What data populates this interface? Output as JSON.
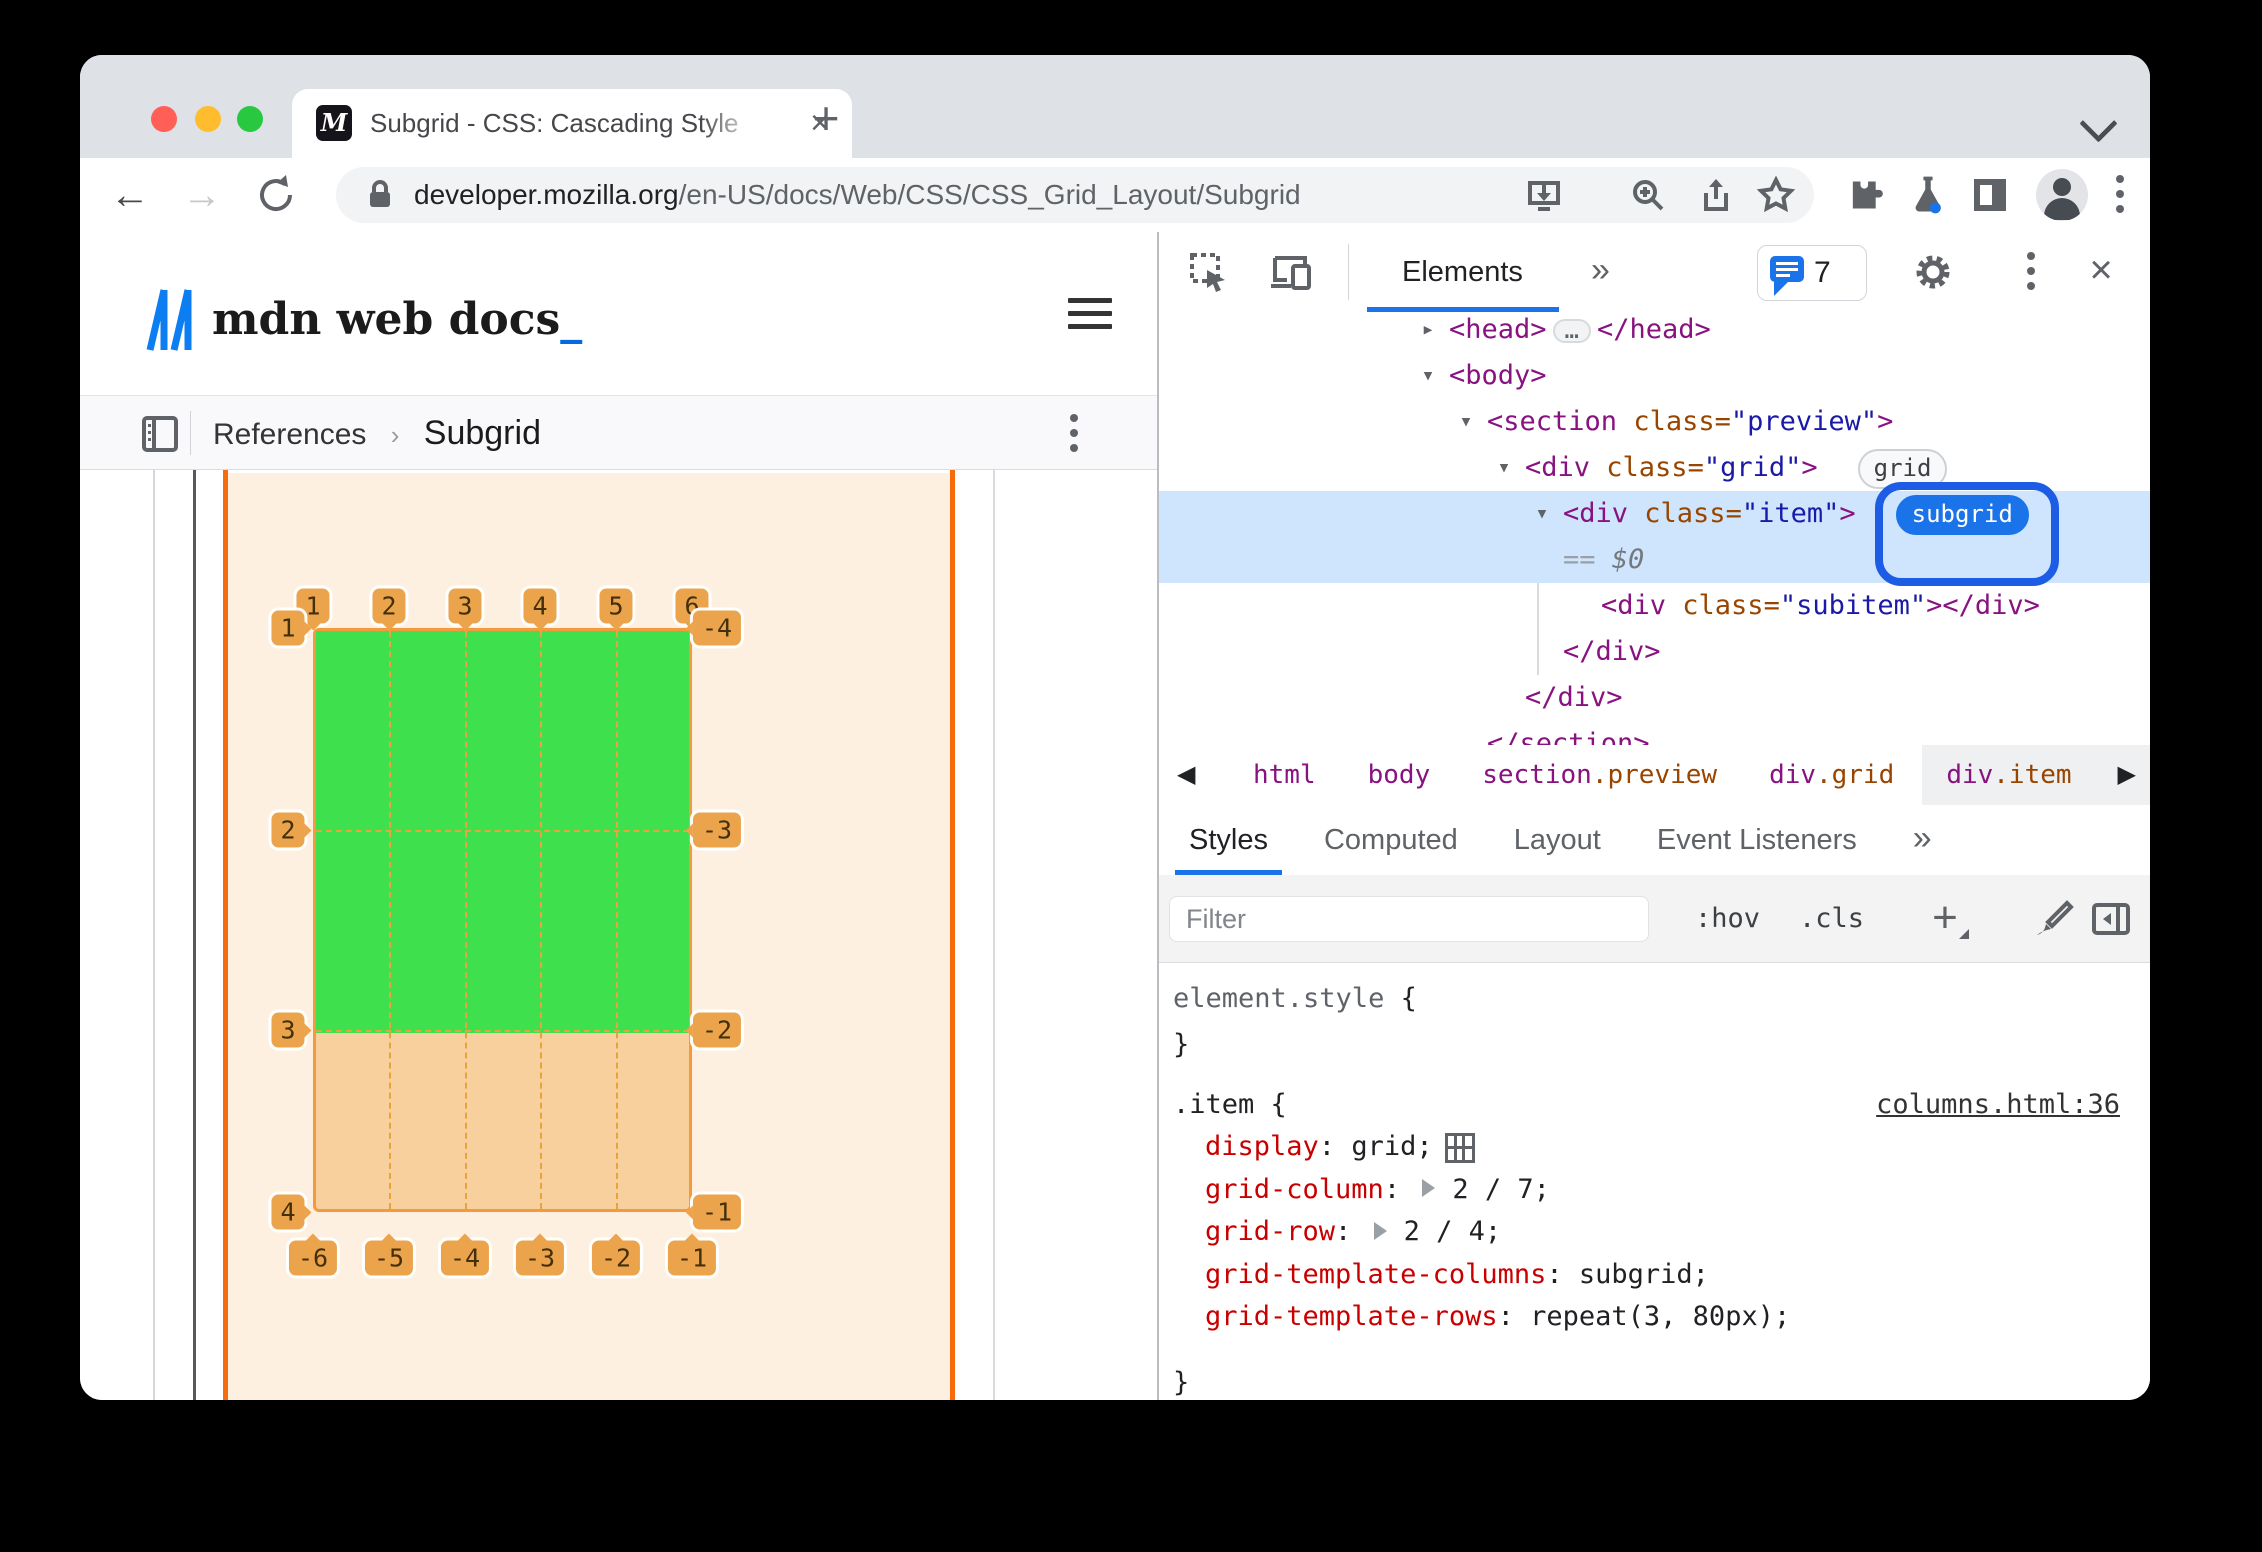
{
  "tab": {
    "favicon_letter": "M",
    "title": "Subgrid - CSS: Cascading Style",
    "close_glyph": "×",
    "new_tab_glyph": "+"
  },
  "toolbar": {
    "back_glyph": "←",
    "forward_glyph": "→",
    "url_domain": "developer.mozilla.org",
    "url_path": "/en-US/docs/Web/CSS/CSS_Grid_Layout/Subgrid"
  },
  "page": {
    "logo_text": "mdn web docs",
    "logo_underscore": "_",
    "breadcrumb": {
      "section": "References",
      "separator": "›",
      "current": "Subgrid"
    },
    "overlay": {
      "top_labels": [
        "1",
        "2",
        "3",
        "4",
        "5",
        "6"
      ],
      "bottom_labels": [
        "-6",
        "-5",
        "-4",
        "-3",
        "-2",
        "-1"
      ],
      "left_labels": [
        "1",
        "2",
        "3",
        "4"
      ],
      "right_labels": [
        "-4",
        "-3",
        "-2",
        "-1"
      ],
      "colors": {
        "page_tint": "#fdf0e1",
        "subgrid_green": "#3ee04e",
        "row_tint": "#f8d09e",
        "grid_line": "#f66b0c",
        "dashed_line": "#e8a33d",
        "badge": "#eca44c"
      }
    }
  },
  "devtools": {
    "header": {
      "panel_tab": "Elements",
      "more_glyph": "»",
      "issues_count": "7",
      "close_glyph": "×"
    },
    "tree": {
      "rows": [
        {
          "depth": 2,
          "arrow": "▸",
          "parts": [
            {
              "t": "<head>",
              "c": "tag"
            },
            {
              "pill": "…"
            },
            {
              "t": "</head>",
              "c": "tag"
            }
          ]
        },
        {
          "depth": 2,
          "arrow": "▾",
          "parts": [
            {
              "t": "<body>",
              "c": "tag"
            }
          ]
        },
        {
          "depth": 3,
          "arrow": "▾",
          "parts": [
            {
              "t": "<section ",
              "c": "tag"
            },
            {
              "t": "class",
              "c": "attr"
            },
            {
              "t": "=",
              "c": "attr"
            },
            {
              "t": "\"preview\"",
              "c": "val"
            },
            {
              "t": ">",
              "c": "tag"
            }
          ]
        },
        {
          "depth": 4,
          "arrow": "▾",
          "parts": [
            {
              "t": "<div ",
              "c": "tag"
            },
            {
              "t": "class",
              "c": "attr"
            },
            {
              "t": "=",
              "c": "attr"
            },
            {
              "t": "\"grid\"",
              "c": "val"
            },
            {
              "t": ">",
              "c": "tag"
            },
            {
              "badge": "grid",
              "bs": "gray"
            }
          ]
        },
        {
          "depth": 5,
          "arrow": "▾",
          "sel": true,
          "parts": [
            {
              "t": "<div ",
              "c": "tag"
            },
            {
              "t": "class",
              "c": "attr"
            },
            {
              "t": "=",
              "c": "attr"
            },
            {
              "t": "\"item\"",
              "c": "val"
            },
            {
              "t": ">",
              "c": "tag"
            },
            {
              "badge": "subgrid",
              "bs": "blue"
            }
          ]
        },
        {
          "depth": 5,
          "sel": true,
          "parts": [
            {
              "t": "== ",
              "c": "mutedtx"
            },
            {
              "t": "$0",
              "c": "dollar"
            }
          ]
        },
        {
          "depth": 6,
          "parts": [
            {
              "t": "<div ",
              "c": "tag"
            },
            {
              "t": "class",
              "c": "attr"
            },
            {
              "t": "=",
              "c": "attr"
            },
            {
              "t": "\"subitem\"",
              "c": "val"
            },
            {
              "t": ">",
              "c": "tag"
            },
            {
              "t": "</div>",
              "c": "tag"
            }
          ]
        },
        {
          "depth": 5,
          "parts": [
            {
              "t": "</div>",
              "c": "tag"
            }
          ]
        },
        {
          "depth": 4,
          "parts": [
            {
              "t": "</div>",
              "c": "tag"
            }
          ]
        },
        {
          "depth": 3,
          "parts": [
            {
              "t": "</section>",
              "c": "tag"
            }
          ]
        }
      ]
    },
    "crumbs": [
      {
        "tag": "html",
        "cls": ""
      },
      {
        "tag": "body",
        "cls": ""
      },
      {
        "tag": "section",
        "cls": ".preview"
      },
      {
        "tag": "div",
        "cls": ".grid"
      },
      {
        "tag": "div",
        "cls": ".item",
        "selected": true
      }
    ],
    "crumb_back_glyph": "◀",
    "crumb_fwd_glyph": "▶",
    "tabs": [
      {
        "label": "Styles",
        "active": true
      },
      {
        "label": "Computed",
        "active": false
      },
      {
        "label": "Layout",
        "active": false
      },
      {
        "label": "Event Listeners",
        "active": false
      }
    ],
    "tabs_more_glyph": "»",
    "filter": {
      "placeholder": "Filter",
      "hov": ":hov",
      "cls": ".cls"
    },
    "element_style": {
      "selector": "element.style",
      "open": "{",
      "close": "}"
    },
    "rule": {
      "selector": ".item",
      "open": "{",
      "close": "}",
      "source_link": "columns.html:36",
      "props": [
        {
          "name": "display",
          "value": "grid;",
          "icon": true
        },
        {
          "name": "grid-column",
          "value": "2 / 7;",
          "expand": true
        },
        {
          "name": "grid-row",
          "value": "2 / 4;",
          "expand": true
        },
        {
          "name": "grid-template-columns",
          "value": "subgrid;"
        },
        {
          "name": "grid-template-rows",
          "value": "repeat(3, 80px);"
        }
      ]
    }
  }
}
